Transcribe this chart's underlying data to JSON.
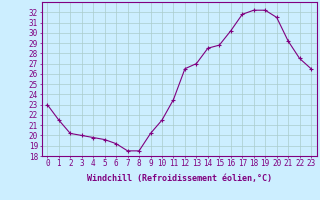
{
  "x": [
    0,
    1,
    2,
    3,
    4,
    5,
    6,
    7,
    8,
    9,
    10,
    11,
    12,
    13,
    14,
    15,
    16,
    17,
    18,
    19,
    20,
    21,
    22,
    23
  ],
  "y": [
    23.0,
    21.5,
    20.2,
    20.0,
    19.8,
    19.6,
    19.2,
    18.5,
    18.5,
    20.2,
    21.5,
    23.5,
    26.5,
    27.0,
    28.5,
    28.8,
    30.2,
    31.8,
    32.2,
    32.2,
    31.5,
    29.2,
    27.5,
    26.5
  ],
  "line_color": "#800080",
  "marker": "+",
  "marker_size": 3,
  "bg_color": "#cceeff",
  "grid_color": "#aacccc",
  "xlabel": "Windchill (Refroidissement éolien,°C)",
  "ylim": [
    18,
    33
  ],
  "yticks": [
    18,
    19,
    20,
    21,
    22,
    23,
    24,
    25,
    26,
    27,
    28,
    29,
    30,
    31,
    32
  ],
  "xlim": [
    -0.5,
    23.5
  ],
  "xticks": [
    0,
    1,
    2,
    3,
    4,
    5,
    6,
    7,
    8,
    9,
    10,
    11,
    12,
    13,
    14,
    15,
    16,
    17,
    18,
    19,
    20,
    21,
    22,
    23
  ],
  "tick_color": "#800080",
  "label_color": "#800080",
  "axis_color": "#800080",
  "tick_fontsize": 5.5,
  "xlabel_fontsize": 6.0
}
